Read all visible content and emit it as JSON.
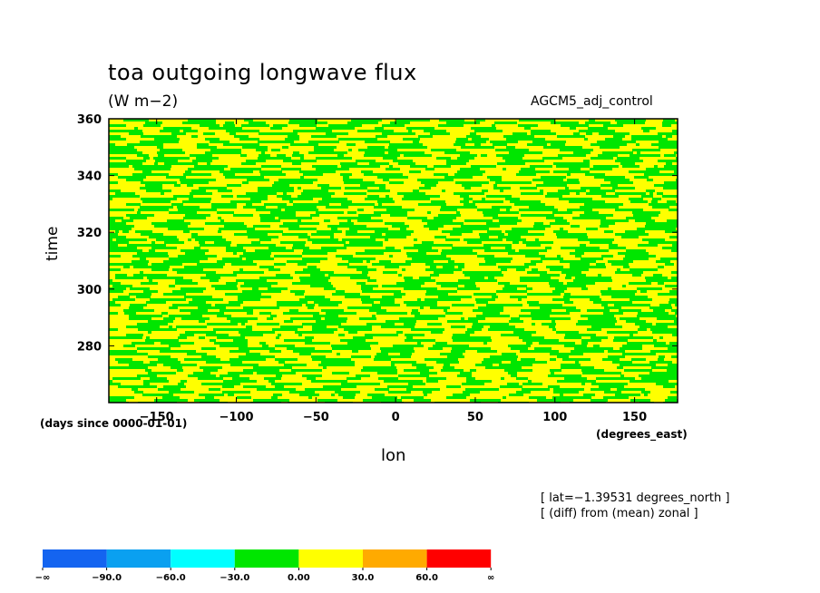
{
  "chart_data": {
    "type": "heatmap",
    "title": "toa outgoing longwave flux",
    "units": "(W m−2)",
    "run_label": "AGCM5_adj_control",
    "xlabel": "lon",
    "x_units": "(degrees_east)",
    "ylabel": "time",
    "y_units": "(days since 0000-01-01)",
    "xlim": [
      -180,
      177
    ],
    "ylim": [
      260,
      360
    ],
    "x_ticks": [
      -150,
      -100,
      -50,
      0,
      50,
      100,
      150
    ],
    "y_ticks": [
      280,
      300,
      320,
      340,
      360
    ],
    "notes": [
      "[ lat=−1.39531 degrees_north ]",
      "[ (diff) from (mean) zonal ]"
    ],
    "colorbar": {
      "colors": [
        "#1464f0",
        "#0aa0f0",
        "#00ffff",
        "#00e600",
        "#ffff00",
        "#ffaa00",
        "#ff0000"
      ],
      "labels": [
        "−∞",
        "−90.0",
        "−60.0",
        "−30.0",
        "0.00",
        "30.0",
        "60.0",
        "∞"
      ],
      "bounds": [
        null,
        -90,
        -60,
        -30,
        0,
        30,
        60,
        null
      ]
    },
    "field_colors": {
      "negative": "#00e600",
      "positive": "#ffff00"
    }
  }
}
